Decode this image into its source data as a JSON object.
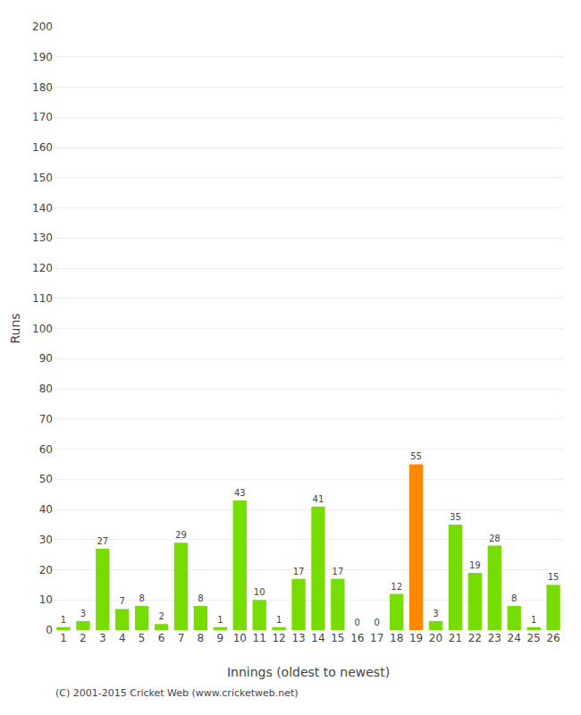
{
  "chart_data": {
    "type": "bar",
    "xlabel": "Innings (oldest to newest)",
    "ylabel": "Runs",
    "categories": [
      "1",
      "2",
      "3",
      "4",
      "5",
      "6",
      "7",
      "8",
      "9",
      "10",
      "11",
      "12",
      "13",
      "14",
      "15",
      "16",
      "17",
      "18",
      "19",
      "20",
      "21",
      "22",
      "23",
      "24",
      "25",
      "26"
    ],
    "values": [
      1,
      3,
      27,
      7,
      8,
      2,
      29,
      8,
      1,
      43,
      10,
      1,
      17,
      41,
      17,
      0,
      0,
      12,
      55,
      3,
      35,
      19,
      28,
      8,
      1,
      15
    ],
    "colors": [
      "#77dd00",
      "#77dd00",
      "#77dd00",
      "#77dd00",
      "#77dd00",
      "#77dd00",
      "#77dd00",
      "#77dd00",
      "#77dd00",
      "#77dd00",
      "#77dd00",
      "#77dd00",
      "#77dd00",
      "#77dd00",
      "#77dd00",
      "#77dd00",
      "#77dd00",
      "#77dd00",
      "#ff8800",
      "#77dd00",
      "#77dd00",
      "#77dd00",
      "#77dd00",
      "#77dd00",
      "#77dd00",
      "#77dd00"
    ],
    "ylim": [
      0,
      200
    ],
    "yticks": [
      0,
      10,
      20,
      30,
      40,
      50,
      60,
      70,
      80,
      90,
      100,
      110,
      120,
      130,
      140,
      150,
      160,
      170,
      180,
      190,
      200
    ],
    "grid": true,
    "data_labels": true,
    "annotations": [
      "(C) 2001-2015 Cricket Web (www.cricketweb.net)"
    ]
  }
}
